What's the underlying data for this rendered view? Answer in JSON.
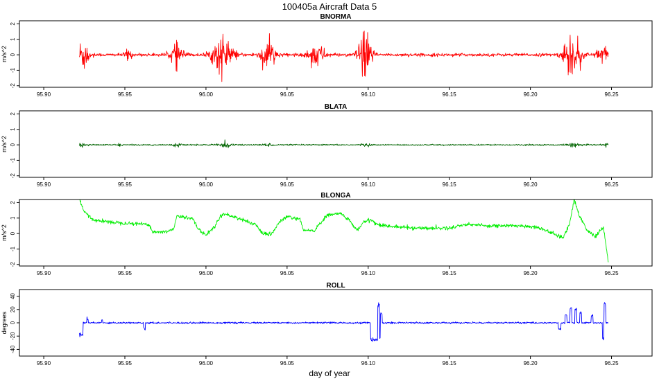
{
  "figure": {
    "title": "100405a   Aircraft Data 5",
    "xlabel": "day of year"
  },
  "chart_data": [
    {
      "type": "line",
      "title": "BNORMA",
      "ylabel": "m/s^2",
      "xlim": [
        95.885,
        96.275
      ],
      "ylim": [
        -2.1,
        2.2
      ],
      "xticks": [
        "95.90",
        "95.95",
        "96.00",
        "96.05",
        "96.10",
        "96.15",
        "96.20",
        "96.25"
      ],
      "yticks": [
        "-2",
        "-1",
        "0",
        "1",
        "2"
      ],
      "color": "#ff0000",
      "data_range_x": [
        95.922,
        96.248
      ],
      "style": "noise",
      "baseline": 0.0,
      "base_amp": 0.08,
      "bursts": [
        {
          "center": 95.924,
          "width": 0.004,
          "amp": 1.5
        },
        {
          "center": 95.952,
          "width": 0.002,
          "amp": 0.5
        },
        {
          "center": 95.982,
          "width": 0.004,
          "amp": 1.0
        },
        {
          "center": 96.01,
          "width": 0.006,
          "amp": 1.7
        },
        {
          "center": 96.038,
          "width": 0.005,
          "amp": 1.2
        },
        {
          "center": 96.068,
          "width": 0.005,
          "amp": 1.0
        },
        {
          "center": 96.098,
          "width": 0.004,
          "amp": 2.0
        },
        {
          "center": 96.226,
          "width": 0.005,
          "amp": 1.9
        },
        {
          "center": 96.244,
          "width": 0.003,
          "amp": 1.2
        }
      ]
    },
    {
      "type": "line",
      "title": "BLATA",
      "ylabel": "m/s^2",
      "xlim": [
        95.885,
        96.275
      ],
      "ylim": [
        -2.1,
        2.2
      ],
      "xticks": [
        "95.90",
        "95.95",
        "96.00",
        "96.05",
        "96.10",
        "96.15",
        "96.20",
        "96.25"
      ],
      "yticks": [
        "-2",
        "-1",
        "0",
        "1",
        "2"
      ],
      "color": "#006400",
      "data_range_x": [
        95.922,
        96.248
      ],
      "style": "noise",
      "baseline": 0.0,
      "base_amp": 0.03,
      "bursts": [
        {
          "center": 95.923,
          "width": 0.002,
          "amp": 0.2
        },
        {
          "center": 95.947,
          "width": 0.001,
          "amp": 0.2
        },
        {
          "center": 95.982,
          "width": 0.003,
          "amp": 0.12
        },
        {
          "center": 96.012,
          "width": 0.004,
          "amp": 0.22
        },
        {
          "center": 96.038,
          "width": 0.003,
          "amp": 0.12
        },
        {
          "center": 96.098,
          "width": 0.003,
          "amp": 0.1
        },
        {
          "center": 96.226,
          "width": 0.004,
          "amp": 0.15
        },
        {
          "center": 96.247,
          "width": 0.001,
          "amp": 0.2
        }
      ]
    },
    {
      "type": "line",
      "title": "BLONGA",
      "ylabel": "m/s^2",
      "xlim": [
        95.885,
        96.275
      ],
      "ylim": [
        -2.1,
        2.2
      ],
      "xticks": [
        "95.90",
        "95.95",
        "96.00",
        "96.05",
        "96.10",
        "96.15",
        "96.20",
        "96.25"
      ],
      "yticks": [
        "-2",
        "-1",
        "0",
        "1",
        "2"
      ],
      "color": "#00ee00",
      "data_range_x": [
        95.922,
        96.248
      ],
      "style": "steps",
      "noise_amp": 0.06,
      "segments": [
        [
          95.922,
          2.2
        ],
        [
          95.925,
          1.4
        ],
        [
          95.93,
          0.9
        ],
        [
          95.94,
          0.75
        ],
        [
          95.955,
          0.65
        ],
        [
          95.965,
          0.6
        ],
        [
          95.967,
          0.1
        ],
        [
          95.975,
          0.1
        ],
        [
          95.98,
          0.3
        ],
        [
          95.982,
          1.1
        ],
        [
          95.992,
          1.0
        ],
        [
          95.995,
          0.3
        ],
        [
          96.0,
          -0.1
        ],
        [
          96.005,
          0.4
        ],
        [
          96.01,
          1.3
        ],
        [
          96.02,
          1.0
        ],
        [
          96.03,
          0.6
        ],
        [
          96.035,
          0.0
        ],
        [
          96.04,
          -0.1
        ],
        [
          96.045,
          0.7
        ],
        [
          96.05,
          1.1
        ],
        [
          96.058,
          0.9
        ],
        [
          96.06,
          0.2
        ],
        [
          96.067,
          0.2
        ],
        [
          96.07,
          0.6
        ],
        [
          96.075,
          1.2
        ],
        [
          96.083,
          1.3
        ],
        [
          96.088,
          0.9
        ],
        [
          96.093,
          0.2
        ],
        [
          96.098,
          0.8
        ],
        [
          96.102,
          0.9
        ],
        [
          96.105,
          0.6
        ],
        [
          96.115,
          0.45
        ],
        [
          96.13,
          0.35
        ],
        [
          96.15,
          0.35
        ],
        [
          96.16,
          0.6
        ],
        [
          96.175,
          0.5
        ],
        [
          96.195,
          0.5
        ],
        [
          96.205,
          0.4
        ],
        [
          96.212,
          0.1
        ],
        [
          96.22,
          -0.3
        ],
        [
          96.224,
          0.6
        ],
        [
          96.227,
          2.2
        ],
        [
          96.23,
          1.2
        ],
        [
          96.235,
          0.2
        ],
        [
          96.24,
          -0.2
        ],
        [
          96.245,
          0.4
        ],
        [
          96.248,
          -1.8
        ]
      ]
    },
    {
      "type": "line",
      "title": "ROLL",
      "ylabel": "degrees",
      "xlim": [
        95.885,
        96.275
      ],
      "ylim": [
        -50,
        50
      ],
      "xticks": [
        "95.90",
        "95.95",
        "96.00",
        "96.05",
        "96.10",
        "96.15",
        "96.20",
        "96.25"
      ],
      "yticks": [
        "-40",
        "-20",
        "0",
        "20",
        "40"
      ],
      "color": "#0000ff",
      "data_range_x": [
        95.922,
        96.248
      ],
      "style": "roll",
      "baseline": 0.0,
      "base_amp": 1.0,
      "events": [
        {
          "x": 95.923,
          "y": -18,
          "w": 0.0012
        },
        {
          "x": 95.927,
          "y": 5,
          "w": 0.0004
        },
        {
          "x": 95.936,
          "y": 5,
          "w": 0.0004
        },
        {
          "x": 95.962,
          "y": -8,
          "w": 0.0006
        },
        {
          "x": 96.105,
          "y": -25,
          "w": 0.0035
        },
        {
          "x": 96.1065,
          "y": 27,
          "w": 0.0006
        },
        {
          "x": 96.108,
          "y": 12,
          "w": 0.0006
        },
        {
          "x": 96.218,
          "y": -10,
          "w": 0.0008
        },
        {
          "x": 96.222,
          "y": 12,
          "w": 0.0006
        },
        {
          "x": 96.225,
          "y": 22,
          "w": 0.0006
        },
        {
          "x": 96.228,
          "y": 20,
          "w": 0.0006
        },
        {
          "x": 96.231,
          "y": 15,
          "w": 0.0006
        },
        {
          "x": 96.238,
          "y": 10,
          "w": 0.0006
        },
        {
          "x": 96.245,
          "y": -22,
          "w": 0.0006
        },
        {
          "x": 96.246,
          "y": 28,
          "w": 0.0006
        }
      ]
    }
  ]
}
